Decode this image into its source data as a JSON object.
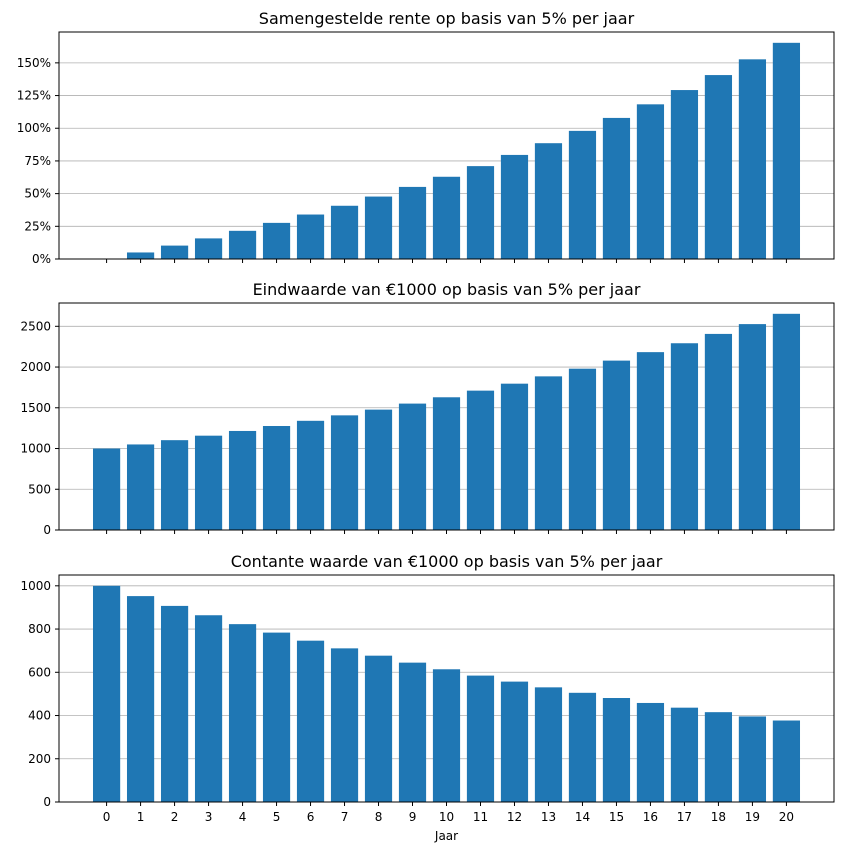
{
  "chart_data": [
    {
      "type": "bar",
      "title": "Samengestelde rente op basis van 5% per jaar",
      "categories": [
        "0",
        "1",
        "2",
        "3",
        "4",
        "5",
        "6",
        "7",
        "8",
        "9",
        "10",
        "11",
        "12",
        "13",
        "14",
        "15",
        "16",
        "17",
        "18",
        "19",
        "20"
      ],
      "values": [
        0,
        5,
        10.25,
        15.76,
        21.55,
        27.63,
        34.01,
        40.71,
        47.75,
        55.13,
        62.89,
        71.03,
        79.59,
        88.56,
        97.99,
        107.89,
        118.29,
        129.2,
        140.66,
        152.7,
        165.33
      ],
      "value_unit": "%",
      "yticks": [
        0,
        25,
        50,
        75,
        100,
        125,
        150
      ],
      "ytick_labels": [
        "0%",
        "25%",
        "50%",
        "75%",
        "100%",
        "125%",
        "150%"
      ],
      "ylim": [
        0,
        173.6
      ],
      "xlabel": "",
      "ylabel": "",
      "grid": "y",
      "show_xtick_labels": false,
      "color": "#1f77b4"
    },
    {
      "type": "bar",
      "title": "Eindwaarde van €1000 op basis van 5% per jaar",
      "categories": [
        "0",
        "1",
        "2",
        "3",
        "4",
        "5",
        "6",
        "7",
        "8",
        "9",
        "10",
        "11",
        "12",
        "13",
        "14",
        "15",
        "16",
        "17",
        "18",
        "19",
        "20"
      ],
      "values": [
        1000,
        1050,
        1102.5,
        1157.63,
        1215.51,
        1276.28,
        1340.1,
        1407.1,
        1477.46,
        1551.33,
        1628.89,
        1710.34,
        1795.86,
        1885.65,
        1979.93,
        2078.93,
        2182.87,
        2292.02,
        2406.62,
        2526.95,
        2653.3
      ],
      "yticks": [
        0,
        500,
        1000,
        1500,
        2000,
        2500
      ],
      "ytick_labels": [
        "0",
        "500",
        "1000",
        "1500",
        "2000",
        "2500"
      ],
      "ylim": [
        0,
        2786
      ],
      "xlabel": "",
      "ylabel": "",
      "grid": "y",
      "show_xtick_labels": false,
      "color": "#1f77b4"
    },
    {
      "type": "bar",
      "title": "Contante waarde van €1000 op basis van 5% per jaar",
      "categories": [
        "0",
        "1",
        "2",
        "3",
        "4",
        "5",
        "6",
        "7",
        "8",
        "9",
        "10",
        "11",
        "12",
        "13",
        "14",
        "15",
        "16",
        "17",
        "18",
        "19",
        "20"
      ],
      "values": [
        1000,
        952.38,
        907.03,
        863.84,
        822.7,
        783.53,
        746.22,
        710.68,
        676.84,
        644.61,
        613.91,
        584.68,
        556.84,
        530.32,
        505.07,
        481.02,
        458.11,
        436.3,
        415.52,
        395.73,
        376.89
      ],
      "yticks": [
        0,
        200,
        400,
        600,
        800,
        1000
      ],
      "ytick_labels": [
        "0",
        "200",
        "400",
        "600",
        "800",
        "1000"
      ],
      "ylim": [
        0,
        1050
      ],
      "xlabel": "Jaar",
      "ylabel": "",
      "grid": "y",
      "show_xtick_labels": true,
      "color": "#1f77b4"
    }
  ]
}
